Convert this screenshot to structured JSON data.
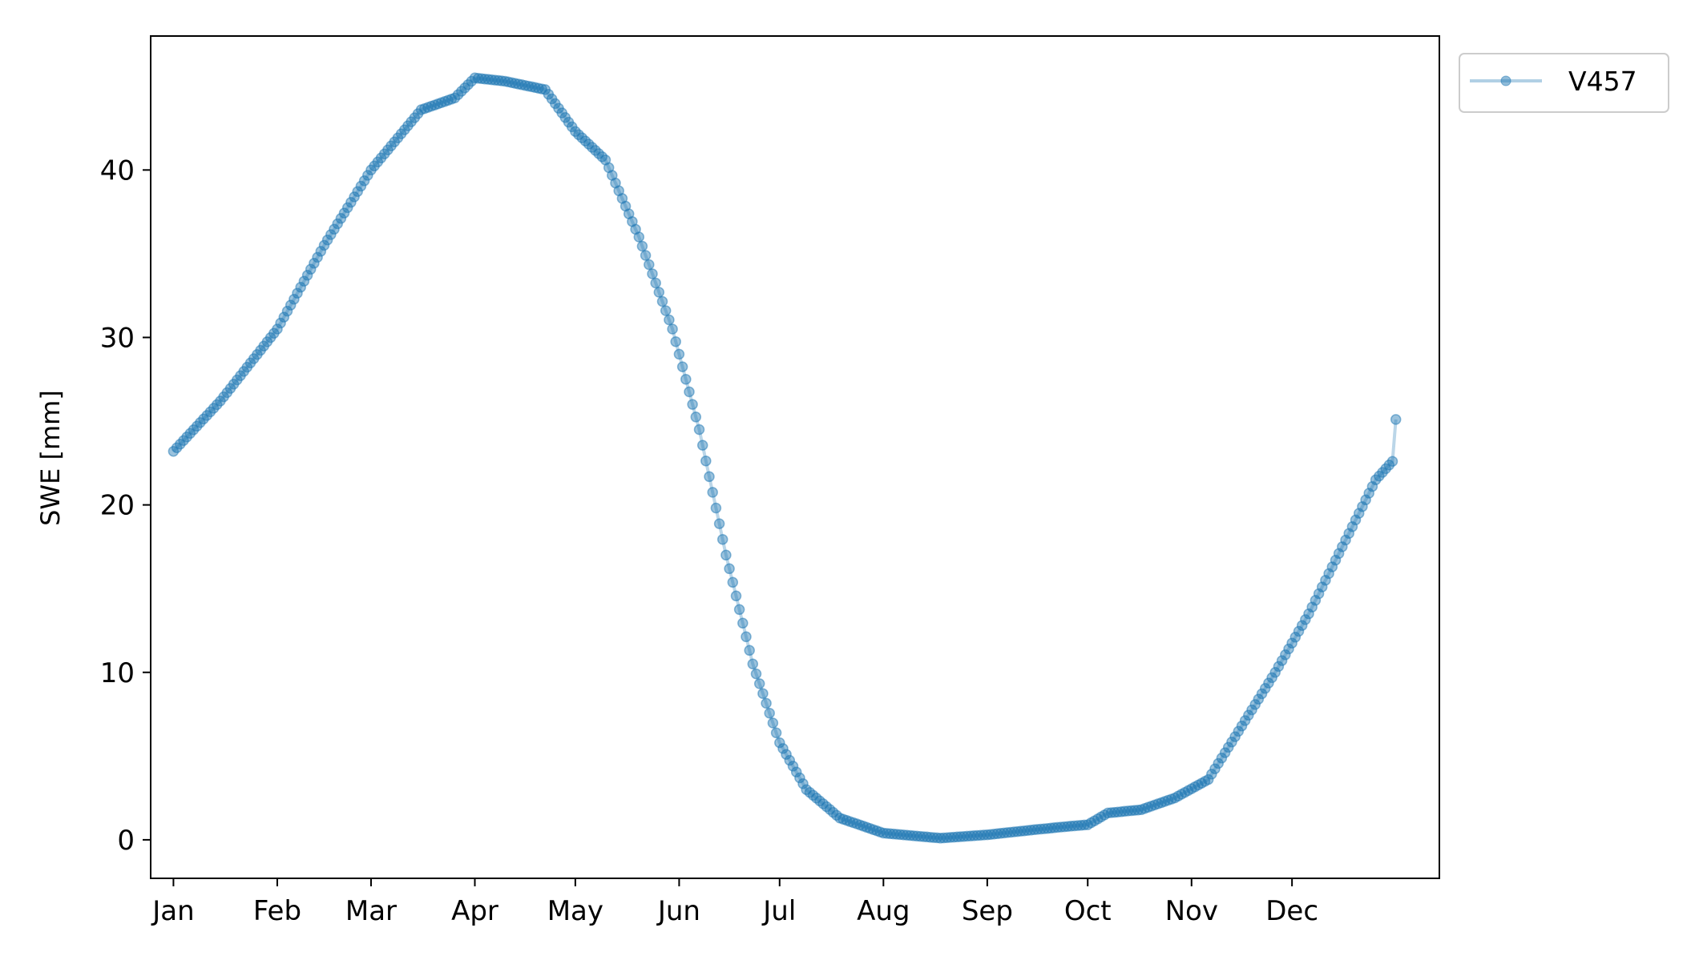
{
  "chart_data": {
    "type": "line",
    "title": "",
    "xlabel": "",
    "ylabel": "SWE [mm]",
    "x_unit": "day of year",
    "xlim": [
      -5.8,
      379
    ],
    "ylim": [
      -2.3,
      48
    ],
    "x_ticks": [
      {
        "label": "Jan",
        "value": 1
      },
      {
        "label": "Feb",
        "value": 32
      },
      {
        "label": "Mar",
        "value": 60
      },
      {
        "label": "Apr",
        "value": 91
      },
      {
        "label": "May",
        "value": 121
      },
      {
        "label": "Jun",
        "value": 152
      },
      {
        "label": "Jul",
        "value": 182
      },
      {
        "label": "Aug",
        "value": 213
      },
      {
        "label": "Sep",
        "value": 244
      },
      {
        "label": "Oct",
        "value": 274
      },
      {
        "label": "Nov",
        "value": 305
      },
      {
        "label": "Dec",
        "value": 335
      }
    ],
    "y_ticks": [
      0,
      10,
      20,
      30,
      40
    ],
    "grid": false,
    "legend": {
      "placement": "outside-top-right",
      "entries": [
        "V457"
      ]
    },
    "series": [
      {
        "name": "V457",
        "color": "#1f77b4",
        "marker": "circle",
        "points": [
          [
            1,
            23.2
          ],
          [
            15,
            26.2
          ],
          [
            32,
            30.5
          ],
          [
            46,
            35.5
          ],
          [
            60,
            40.0
          ],
          [
            75,
            43.6
          ],
          [
            85,
            44.3
          ],
          [
            91,
            45.5
          ],
          [
            100,
            45.3
          ],
          [
            112,
            44.8
          ],
          [
            121,
            42.3
          ],
          [
            130,
            40.6
          ],
          [
            140,
            36.0
          ],
          [
            150,
            30.5
          ],
          [
            158,
            24.5
          ],
          [
            166,
            17.0
          ],
          [
            174,
            10.5
          ],
          [
            182,
            5.8
          ],
          [
            190,
            3.0
          ],
          [
            200,
            1.3
          ],
          [
            213,
            0.4
          ],
          [
            230,
            0.1
          ],
          [
            244,
            0.3
          ],
          [
            258,
            0.6
          ],
          [
            268,
            0.8
          ],
          [
            274,
            0.9
          ],
          [
            280,
            1.6
          ],
          [
            290,
            1.8
          ],
          [
            300,
            2.5
          ],
          [
            310,
            3.6
          ],
          [
            320,
            6.8
          ],
          [
            330,
            10.0
          ],
          [
            340,
            13.5
          ],
          [
            350,
            17.5
          ],
          [
            360,
            21.5
          ],
          [
            365,
            22.6
          ],
          [
            366,
            25.1
          ]
        ]
      }
    ]
  }
}
